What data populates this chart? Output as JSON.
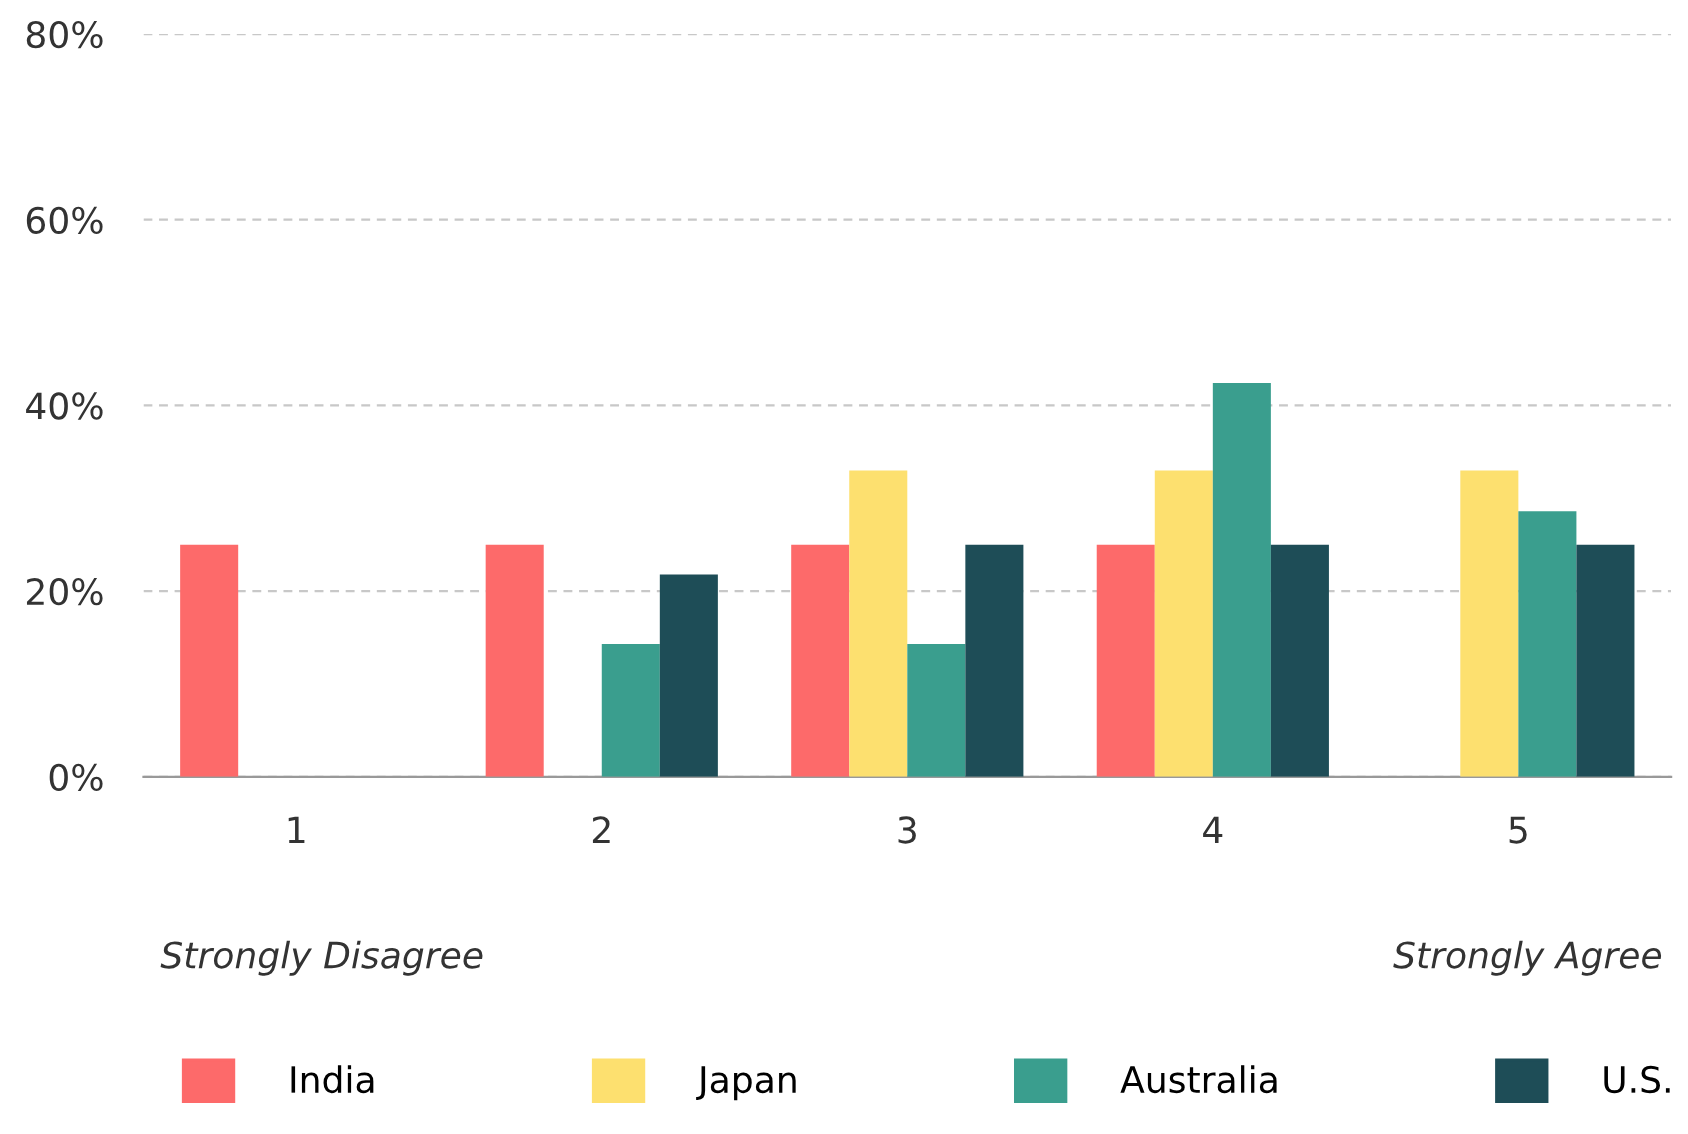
{
  "chart_data": {
    "type": "bar",
    "categories": [
      "1",
      "2",
      "3",
      "4",
      "5"
    ],
    "series": [
      {
        "name": "India",
        "color": "#fd6a6a",
        "values": [
          25,
          25,
          25,
          25,
          null
        ]
      },
      {
        "name": "Japan",
        "color": "#fde06f",
        "values": [
          null,
          null,
          33,
          33,
          33
        ]
      },
      {
        "name": "Australia",
        "color": "#3a9e8e",
        "values": [
          null,
          14.3,
          14.3,
          42.4,
          28.6
        ]
      },
      {
        "name": "U.S.",
        "color": "#1e4d57",
        "values": [
          null,
          21.8,
          25,
          25,
          25
        ]
      }
    ],
    "ylim": [
      0,
      80
    ],
    "yticks": [
      {
        "value": 0,
        "label": "0%"
      },
      {
        "value": 20,
        "label": "20%"
      },
      {
        "value": 40,
        "label": "40%"
      },
      {
        "value": 60,
        "label": "60%"
      },
      {
        "value": 80,
        "label": "80%"
      }
    ],
    "grid": "y",
    "legend": "bottom",
    "annotations": [
      "Strongly Disagree",
      "Strongly Agree"
    ]
  }
}
